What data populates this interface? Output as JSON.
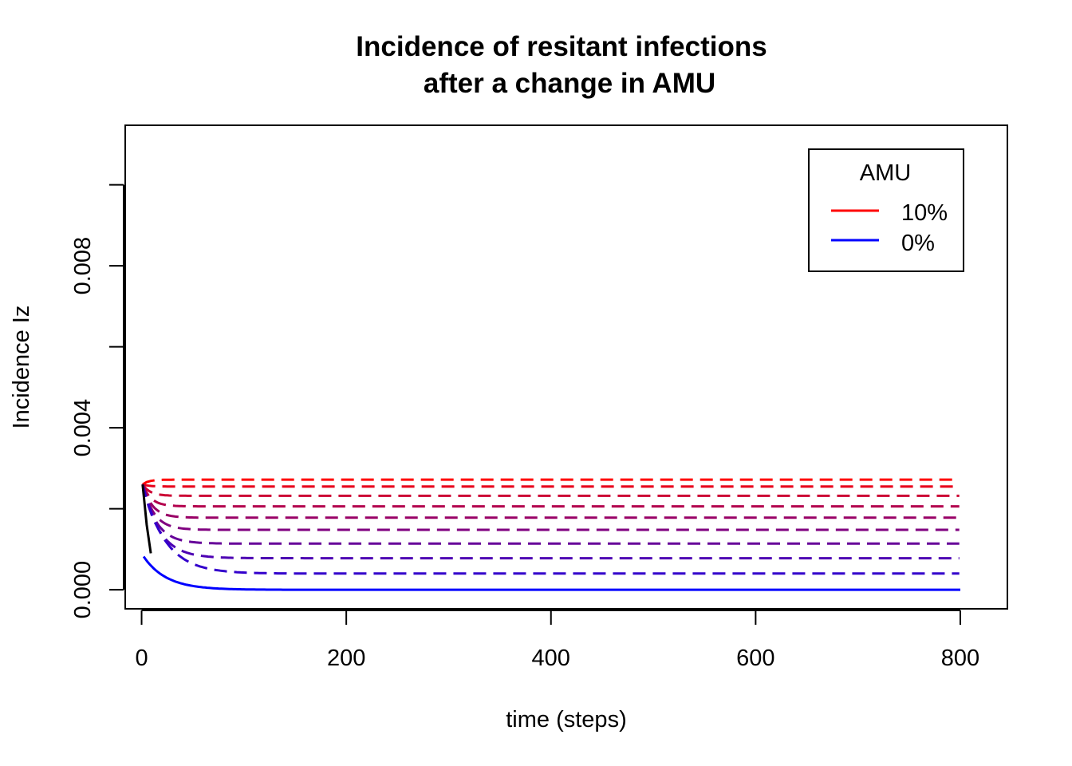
{
  "chart_data": {
    "type": "line",
    "title_line1": "Incidence of resitant infections",
    "title_line2": "after a change in AMU",
    "xlabel": "time (steps)",
    "ylabel": "Incidence Iz",
    "xlim": [
      -16,
      846
    ],
    "ylim": [
      -0.00047,
      0.01147
    ],
    "x_ticks": [
      0,
      200,
      400,
      600,
      800
    ],
    "x_tick_labels": [
      "0",
      "200",
      "400",
      "600",
      "800"
    ],
    "y_ticks": [
      0.0,
      0.002,
      0.004,
      0.006,
      0.008,
      0.01
    ],
    "y_tick_labels": [
      "0.000",
      "",
      "0.004",
      "",
      "0.008",
      ""
    ],
    "grid": false,
    "legend": {
      "title": "AMU",
      "position": "top-right",
      "entries": [
        {
          "label": "10%",
          "color": "#ff0000"
        },
        {
          "label": "0%",
          "color": "#0000ff"
        }
      ]
    },
    "start_level": 0.0026,
    "series": [
      {
        "plateau": 0.00272,
        "color": "#ff0000",
        "dashed": true
      },
      {
        "plateau": 0.00255,
        "color": "#e8001a",
        "dashed": true
      },
      {
        "plateau": 0.00232,
        "color": "#cc0033",
        "dashed": true
      },
      {
        "plateau": 0.00206,
        "color": "#b3004d",
        "dashed": true
      },
      {
        "plateau": 0.00178,
        "color": "#990066",
        "dashed": true
      },
      {
        "plateau": 0.00148,
        "color": "#800080",
        "dashed": true
      },
      {
        "plateau": 0.00114,
        "color": "#660099",
        "dashed": true
      },
      {
        "plateau": 0.00078,
        "color": "#4d00b3",
        "dashed": true
      },
      {
        "plateau": 0.0004,
        "color": "#3300cc",
        "dashed": true
      },
      {
        "plateau": 0.0,
        "color": "#0000ff",
        "dashed": false
      }
    ],
    "x_max": 800
  }
}
